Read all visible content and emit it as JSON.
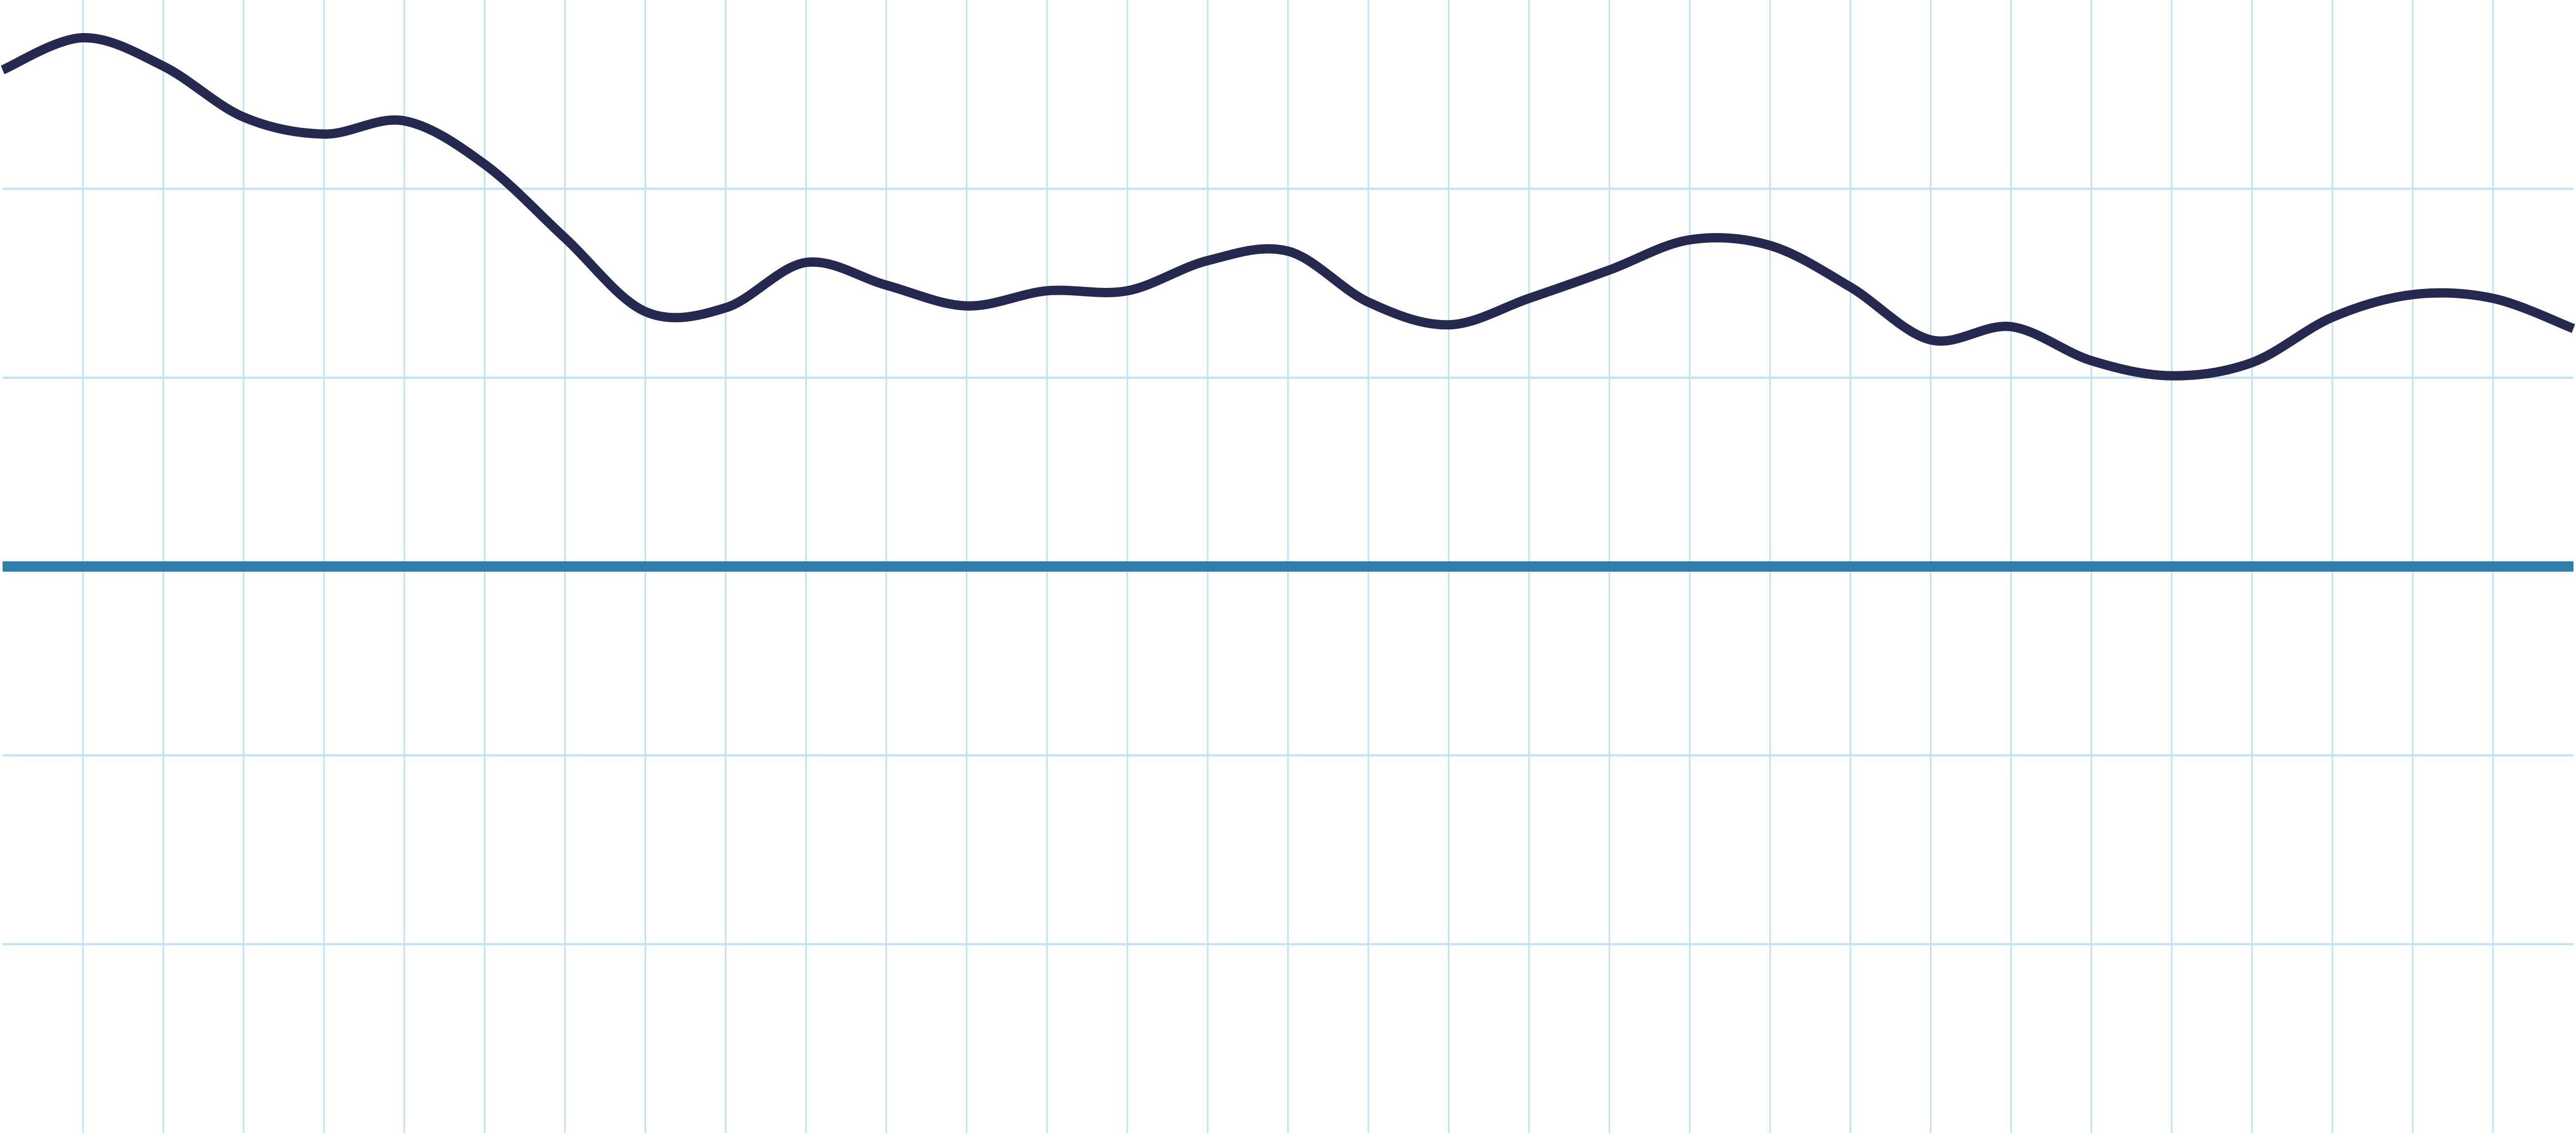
{
  "chart_data": {
    "type": "line",
    "title": "",
    "xlabel": "",
    "ylabel": "",
    "grid": true,
    "legend": "none",
    "colors": {
      "background": "#ffffff",
      "grid": "#bfe3f2",
      "series": "#25284f",
      "reference_line": "#2f7fad"
    },
    "xlim": [
      0,
      32
    ],
    "ylim": [
      -3,
      3
    ],
    "y_gridlines": [
      -2,
      -1,
      1,
      2
    ],
    "reference_line": {
      "y": 0
    },
    "series": [
      {
        "x": [
          0,
          1,
          2,
          3,
          4,
          5,
          6,
          7,
          8,
          9,
          10,
          11,
          12,
          13,
          14,
          15,
          16,
          17,
          18,
          19,
          20,
          21,
          22,
          23,
          24,
          25,
          26,
          27,
          28,
          29,
          30,
          31,
          32
        ],
        "values": [
          2.63,
          2.8,
          2.65,
          2.38,
          2.29,
          2.36,
          2.13,
          1.74,
          1.35,
          1.37,
          1.61,
          1.49,
          1.38,
          1.46,
          1.46,
          1.62,
          1.67,
          1.4,
          1.28,
          1.42,
          1.57,
          1.73,
          1.7,
          1.48,
          1.2,
          1.27,
          1.09,
          1.01,
          1.08,
          1.32,
          1.44,
          1.42,
          1.26
        ]
      }
    ]
  }
}
